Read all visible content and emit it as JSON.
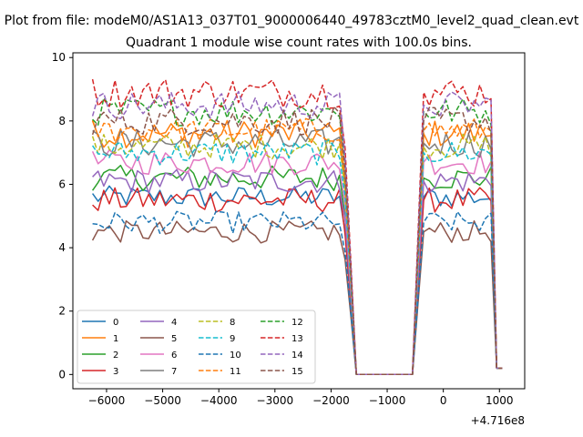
{
  "figure": {
    "suptitle": "Plot from file: modeM0/AS1A13_037T01_9000006440_49783cztM0_level2_quad_clean.evt",
    "offset_label": "+4.716e8"
  },
  "chart_data": {
    "type": "line",
    "title": "Quadrant 1 module wise count rates with 100.0s bins.",
    "xlabel": "",
    "ylabel": "",
    "x_offset": 471600000,
    "xlim": [
      -6600,
      1450
    ],
    "ylim": [
      -0.45,
      10.15
    ],
    "xticks": [
      -6000,
      -5000,
      -4000,
      -3000,
      -2000,
      -1000,
      0,
      1000
    ],
    "xtick_labels": [
      "−6000",
      "−5000",
      "−4000",
      "−3000",
      "−2000",
      "−1000",
      "0",
      "1000"
    ],
    "yticks": [
      0,
      2,
      4,
      6,
      8,
      10
    ],
    "ytick_labels": [
      "0",
      "2",
      "4",
      "6",
      "8",
      "10"
    ],
    "grid": false,
    "legend_position": "lower-left",
    "legend_columns": 4,
    "series": [
      {
        "name": "0",
        "color": "#1f77b4",
        "dash": "solid",
        "base": 5.6,
        "amp": 0.35
      },
      {
        "name": "1",
        "color": "#ff7f0e",
        "dash": "solid",
        "base": 7.6,
        "amp": 0.45
      },
      {
        "name": "2",
        "color": "#2ca02c",
        "dash": "solid",
        "base": 6.2,
        "amp": 0.4
      },
      {
        "name": "3",
        "color": "#d62728",
        "dash": "solid",
        "base": 5.5,
        "amp": 0.4
      },
      {
        "name": "4",
        "color": "#9467bd",
        "dash": "solid",
        "base": 6.1,
        "amp": 0.4
      },
      {
        "name": "5",
        "color": "#8c564b",
        "dash": "solid",
        "base": 4.5,
        "amp": 0.35
      },
      {
        "name": "6",
        "color": "#e377c2",
        "dash": "solid",
        "base": 6.7,
        "amp": 0.4
      },
      {
        "name": "7",
        "color": "#7f7f7f",
        "dash": "solid",
        "base": 7.3,
        "amp": 0.45
      },
      {
        "name": "8",
        "color": "#bcbd22",
        "dash": "dashed",
        "base": 7.2,
        "amp": 0.4
      },
      {
        "name": "9",
        "color": "#17becf",
        "dash": "dashed",
        "base": 7.0,
        "amp": 0.4
      },
      {
        "name": "10",
        "color": "#1f77b4",
        "dash": "dashed",
        "base": 4.8,
        "amp": 0.35
      },
      {
        "name": "11",
        "color": "#ff7f0e",
        "dash": "dashed",
        "base": 7.7,
        "amp": 0.4
      },
      {
        "name": "12",
        "color": "#2ca02c",
        "dash": "dashed",
        "base": 8.3,
        "amp": 0.45
      },
      {
        "name": "13",
        "color": "#d62728",
        "dash": "dashed",
        "base": 8.9,
        "amp": 0.5
      },
      {
        "name": "14",
        "color": "#9467bd",
        "dash": "dashed",
        "base": 8.5,
        "amp": 0.45
      },
      {
        "name": "15",
        "color": "#8c564b",
        "dash": "dashed",
        "base": 8.0,
        "amp": 0.45
      }
    ],
    "time_bins": {
      "start": -6250,
      "step": 100,
      "count": 74
    },
    "gap": {
      "drop_start": -1800,
      "zero_start": -1550,
      "zero_end": -550,
      "rise_end": -350,
      "end": 1050
    }
  }
}
